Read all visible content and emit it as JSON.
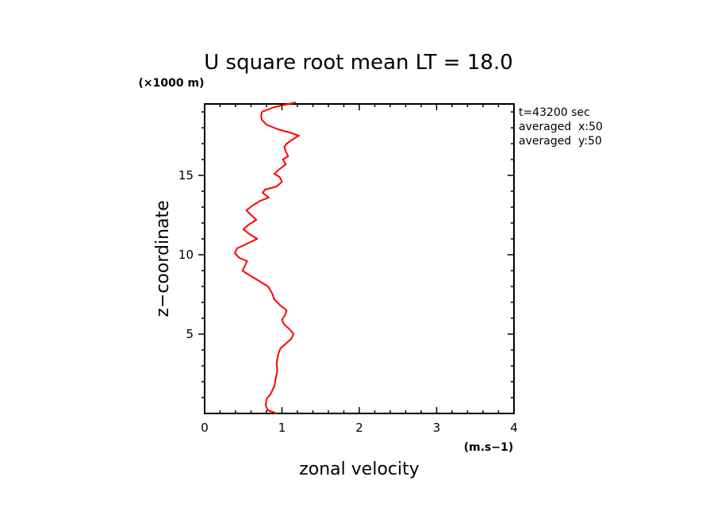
{
  "chart_data": {
    "type": "line",
    "title": "U square root mean LT = 18.0",
    "xlabel": "zonal velocity",
    "x_unit_label": "(m.s−1)",
    "ylabel": "z−coordinate",
    "y_unit_label": "(×1000 m)",
    "xlim": [
      0,
      4
    ],
    "ylim": [
      0,
      19.5
    ],
    "x_ticks": [
      "0",
      "1",
      "2",
      "3",
      "4"
    ],
    "y_ticks": [
      "5",
      "10",
      "15"
    ],
    "info_lines": [
      "t=43200 sec",
      "averaged  x:50",
      "averaged  y:50"
    ],
    "grid": false,
    "series": [
      {
        "color": "#ff0000",
        "points": [
          [
            0.93,
            0.0
          ],
          [
            0.82,
            0.2
          ],
          [
            0.79,
            0.5
          ],
          [
            0.8,
            0.9
          ],
          [
            0.85,
            1.2
          ],
          [
            0.9,
            1.7
          ],
          [
            0.92,
            2.2
          ],
          [
            0.94,
            2.7
          ],
          [
            0.93,
            3.2
          ],
          [
            0.95,
            3.7
          ],
          [
            0.98,
            4.1
          ],
          [
            1.05,
            4.4
          ],
          [
            1.12,
            4.7
          ],
          [
            1.15,
            5.0
          ],
          [
            1.1,
            5.3
          ],
          [
            1.03,
            5.6
          ],
          [
            1.0,
            5.9
          ],
          [
            1.04,
            6.2
          ],
          [
            1.06,
            6.5
          ],
          [
            0.98,
            6.8
          ],
          [
            0.9,
            7.2
          ],
          [
            0.87,
            7.6
          ],
          [
            0.82,
            8.0
          ],
          [
            0.72,
            8.3
          ],
          [
            0.62,
            8.6
          ],
          [
            0.55,
            8.8
          ],
          [
            0.49,
            9.0
          ],
          [
            0.52,
            9.3
          ],
          [
            0.55,
            9.6
          ],
          [
            0.45,
            9.8
          ],
          [
            0.39,
            10.1
          ],
          [
            0.42,
            10.4
          ],
          [
            0.55,
            10.7
          ],
          [
            0.68,
            11.0
          ],
          [
            0.58,
            11.3
          ],
          [
            0.5,
            11.6
          ],
          [
            0.57,
            11.9
          ],
          [
            0.67,
            12.2
          ],
          [
            0.6,
            12.5
          ],
          [
            0.54,
            12.8
          ],
          [
            0.62,
            13.1
          ],
          [
            0.72,
            13.4
          ],
          [
            0.83,
            13.6
          ],
          [
            0.75,
            13.9
          ],
          [
            0.78,
            14.1
          ],
          [
            0.93,
            14.3
          ],
          [
            1.0,
            14.6
          ],
          [
            0.97,
            14.9
          ],
          [
            0.9,
            15.1
          ],
          [
            0.97,
            15.4
          ],
          [
            1.05,
            15.7
          ],
          [
            1.01,
            16.0
          ],
          [
            1.08,
            16.2
          ],
          [
            1.05,
            16.5
          ],
          [
            1.03,
            16.8
          ],
          [
            1.06,
            17.0
          ],
          [
            1.15,
            17.3
          ],
          [
            1.22,
            17.5
          ],
          [
            1.1,
            17.7
          ],
          [
            0.95,
            17.9
          ],
          [
            0.8,
            18.2
          ],
          [
            0.74,
            18.5
          ],
          [
            0.73,
            18.7
          ],
          [
            0.74,
            19.0
          ],
          [
            0.9,
            19.3
          ],
          [
            1.18,
            19.6
          ]
        ]
      }
    ]
  }
}
